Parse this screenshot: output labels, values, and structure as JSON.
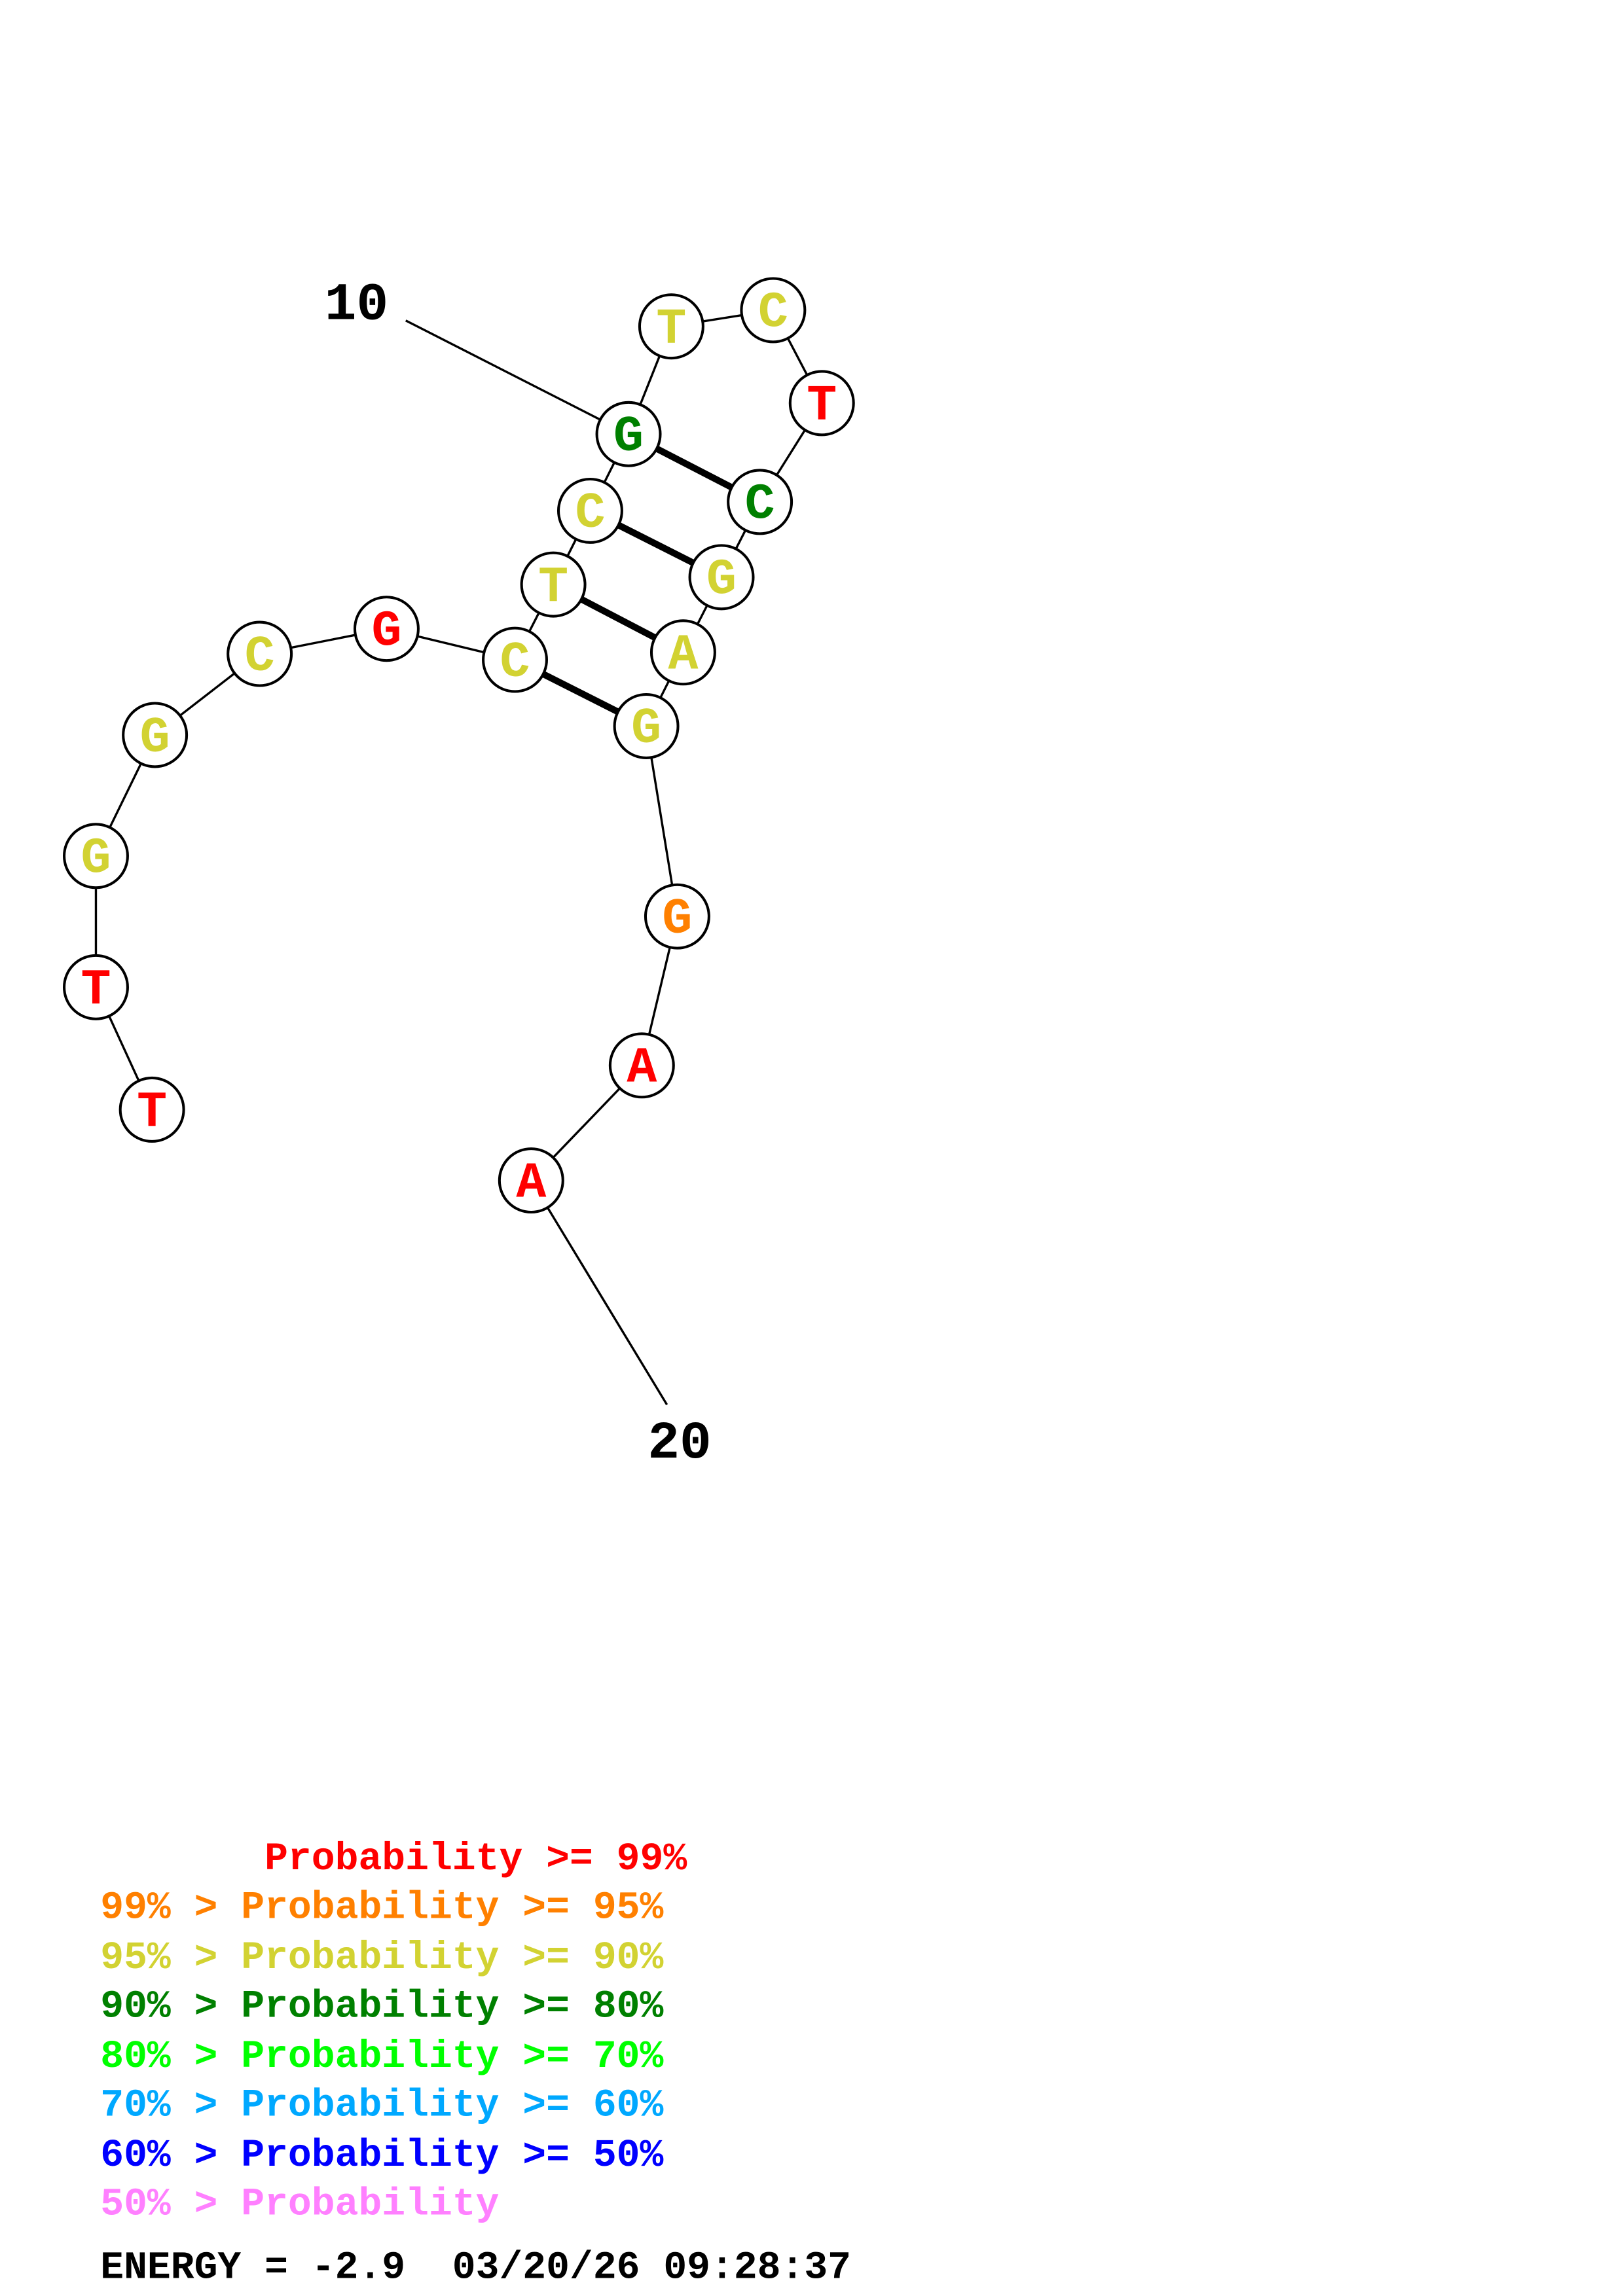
{
  "structure": {
    "sequence": "TTGGCGCTCGTCTCGAGGAA",
    "nucleotides": [
      {
        "n": 1,
        "base": "T",
        "color": "#ff0000"
      },
      {
        "n": 2,
        "base": "T",
        "color": "#ff0000"
      },
      {
        "n": 3,
        "base": "G",
        "color": "#d2d232"
      },
      {
        "n": 4,
        "base": "G",
        "color": "#d2d232"
      },
      {
        "n": 5,
        "base": "C",
        "color": "#d2d232"
      },
      {
        "n": 6,
        "base": "G",
        "color": "#ff0000"
      },
      {
        "n": 7,
        "base": "C",
        "color": "#d2d232"
      },
      {
        "n": 8,
        "base": "T",
        "color": "#d2d232"
      },
      {
        "n": 9,
        "base": "C",
        "color": "#d2d232"
      },
      {
        "n": 10,
        "base": "G",
        "color": "#008000"
      },
      {
        "n": 11,
        "base": "T",
        "color": "#d2d232"
      },
      {
        "n": 12,
        "base": "C",
        "color": "#d2d232"
      },
      {
        "n": 13,
        "base": "T",
        "color": "#ff0000"
      },
      {
        "n": 14,
        "base": "C",
        "color": "#008000"
      },
      {
        "n": 15,
        "base": "G",
        "color": "#d2d232"
      },
      {
        "n": 16,
        "base": "A",
        "color": "#d2d232"
      },
      {
        "n": 17,
        "base": "G",
        "color": "#d2d232"
      },
      {
        "n": 18,
        "base": "G",
        "color": "#ff8000"
      },
      {
        "n": 19,
        "base": "A",
        "color": "#ff0000"
      },
      {
        "n": 20,
        "base": "A",
        "color": "#ff0000"
      }
    ],
    "pairs": [
      [
        7,
        17
      ],
      [
        8,
        16
      ],
      [
        9,
        15
      ],
      [
        10,
        14
      ]
    ],
    "index_labels": {
      "label_10": "10",
      "label_20": "20"
    }
  },
  "legend": [
    {
      "text": "       Probability >= 99%",
      "color": "#ff0000"
    },
    {
      "text": "99% > Probability >= 95%",
      "color": "#ff8000"
    },
    {
      "text": "95% > Probability >= 90%",
      "color": "#d2d232"
    },
    {
      "text": "90% > Probability >= 80%",
      "color": "#008000"
    },
    {
      "text": "80% > Probability >= 70%",
      "color": "#00ff00"
    },
    {
      "text": "70% > Probability >= 60%",
      "color": "#00a8ff"
    },
    {
      "text": "60% > Probability >= 50%",
      "color": "#0000ff"
    },
    {
      "text": "50% > Probability",
      "color": "#ff80ff"
    }
  ],
  "footer": {
    "energy": "ENERGY = -2.9  03/20/26 09:28:37"
  }
}
